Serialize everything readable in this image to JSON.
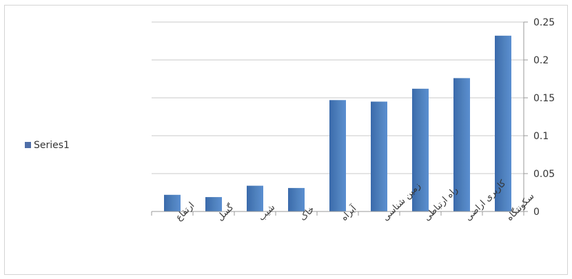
{
  "chart_data": {
    "type": "bar",
    "categories": [
      "ارتفاع",
      "گسل",
      "شیب",
      "خاک",
      "آبراه",
      "زمین شناسی",
      "راه ارتباطی",
      "کاربری اراضی",
      "سکونتگاه"
    ],
    "series": [
      {
        "name": "Series1",
        "values": [
          0.022,
          0.019,
          0.034,
          0.031,
          0.147,
          0.145,
          0.162,
          0.176,
          0.232
        ],
        "color": "#4f81bd"
      }
    ],
    "ylim": [
      0,
      0.25
    ],
    "yticks": [
      "0",
      "0.05",
      "0.1",
      "0.15",
      "0.2",
      "0.25"
    ],
    "ytick_values": [
      0,
      0.05,
      0.1,
      0.15,
      0.2,
      0.25
    ],
    "y_axis_side": "right",
    "grid": true,
    "legend": "left",
    "title": "",
    "xlabel": "",
    "ylabel": ""
  }
}
